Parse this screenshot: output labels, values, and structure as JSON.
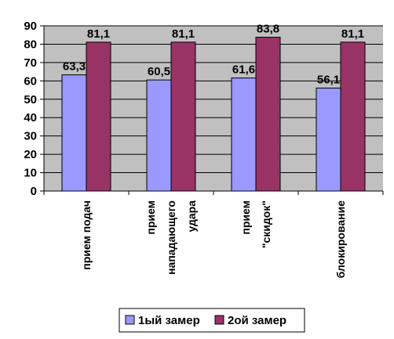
{
  "chart_data": {
    "type": "bar",
    "categories": [
      [
        "прием подач"
      ],
      [
        "прием",
        "нападающего",
        "удара"
      ],
      [
        "прием",
        "\"скидок\""
      ],
      [
        "блокирование"
      ]
    ],
    "series": [
      {
        "name": "1ый замер",
        "values": [
          63.3,
          60.5,
          61.6,
          56.1
        ],
        "labels": [
          "63,3",
          "60,5",
          "61,6",
          "56,1"
        ],
        "color": "#9999FF"
      },
      {
        "name": "2ой замер",
        "values": [
          81.1,
          81.1,
          83.8,
          81.1
        ],
        "labels": [
          "81,1",
          "81,1",
          "83,8",
          "81,1"
        ],
        "color": "#993366"
      }
    ],
    "ylim": [
      0,
      90
    ],
    "yticks": [
      0,
      10,
      20,
      30,
      40,
      50,
      60,
      70,
      80,
      90
    ],
    "plot_background": "#C0C0C0",
    "grid": true,
    "legend_position": "bottom"
  }
}
